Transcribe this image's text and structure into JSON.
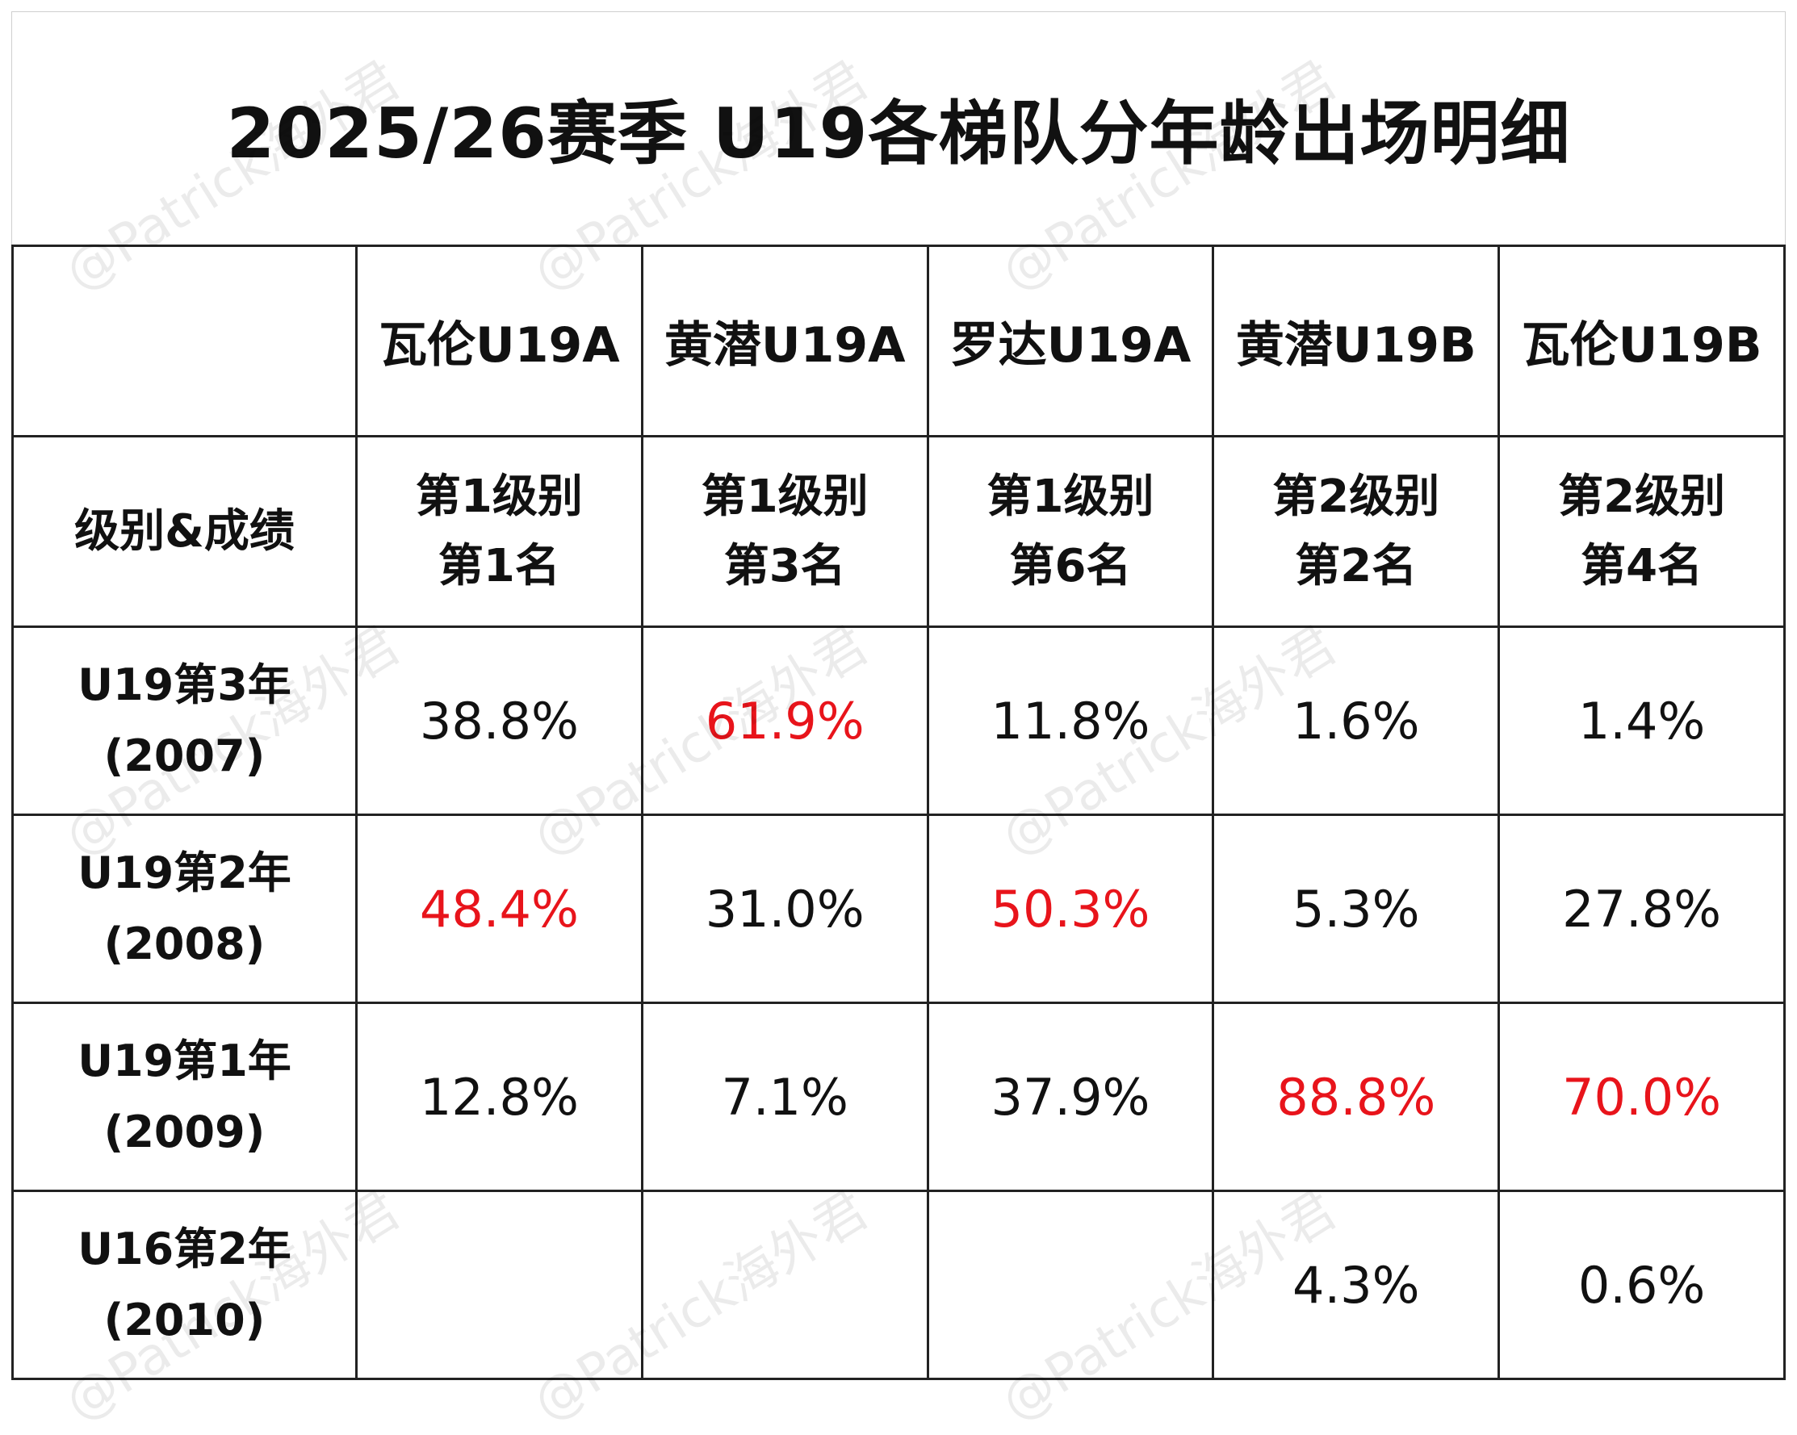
{
  "chart_data": {
    "type": "table",
    "title": "2025/26赛季 U19各梯队分年龄出场明细",
    "columns": [
      "瓦伦U19A",
      "黄潜U19A",
      "罗达U19A",
      "黄潜U19B",
      "瓦伦U19B"
    ],
    "level_label": "级别&成绩",
    "levels": [
      {
        "level": "第1级别",
        "rank": "第1名"
      },
      {
        "level": "第1级别",
        "rank": "第3名"
      },
      {
        "level": "第1级别",
        "rank": "第6名"
      },
      {
        "level": "第2级别",
        "rank": "第2名"
      },
      {
        "level": "第2级别",
        "rank": "第4名"
      }
    ],
    "rows": [
      {
        "label": "U19第3年",
        "year": "(2007)",
        "values": [
          "38.8%",
          "61.9%",
          "11.8%",
          "1.6%",
          "1.4%"
        ],
        "highlight": [
          false,
          true,
          false,
          false,
          false
        ]
      },
      {
        "label": "U19第2年",
        "year": "(2008)",
        "values": [
          "48.4%",
          "31.0%",
          "50.3%",
          "5.3%",
          "27.8%"
        ],
        "highlight": [
          true,
          false,
          true,
          false,
          false
        ]
      },
      {
        "label": "U19第1年",
        "year": "(2009)",
        "values": [
          "12.8%",
          "7.1%",
          "37.9%",
          "88.8%",
          "70.0%"
        ],
        "highlight": [
          false,
          false,
          false,
          true,
          true
        ]
      },
      {
        "label": "U16第2年",
        "year": "(2010)",
        "values": [
          "",
          "",
          "",
          "4.3%",
          "0.6%"
        ],
        "highlight": [
          false,
          false,
          false,
          false,
          false
        ]
      }
    ],
    "highlight_color": "#e8141b",
    "text_color": "#111111",
    "border_color": "#222222"
  },
  "watermark": "@Patrick海外君"
}
